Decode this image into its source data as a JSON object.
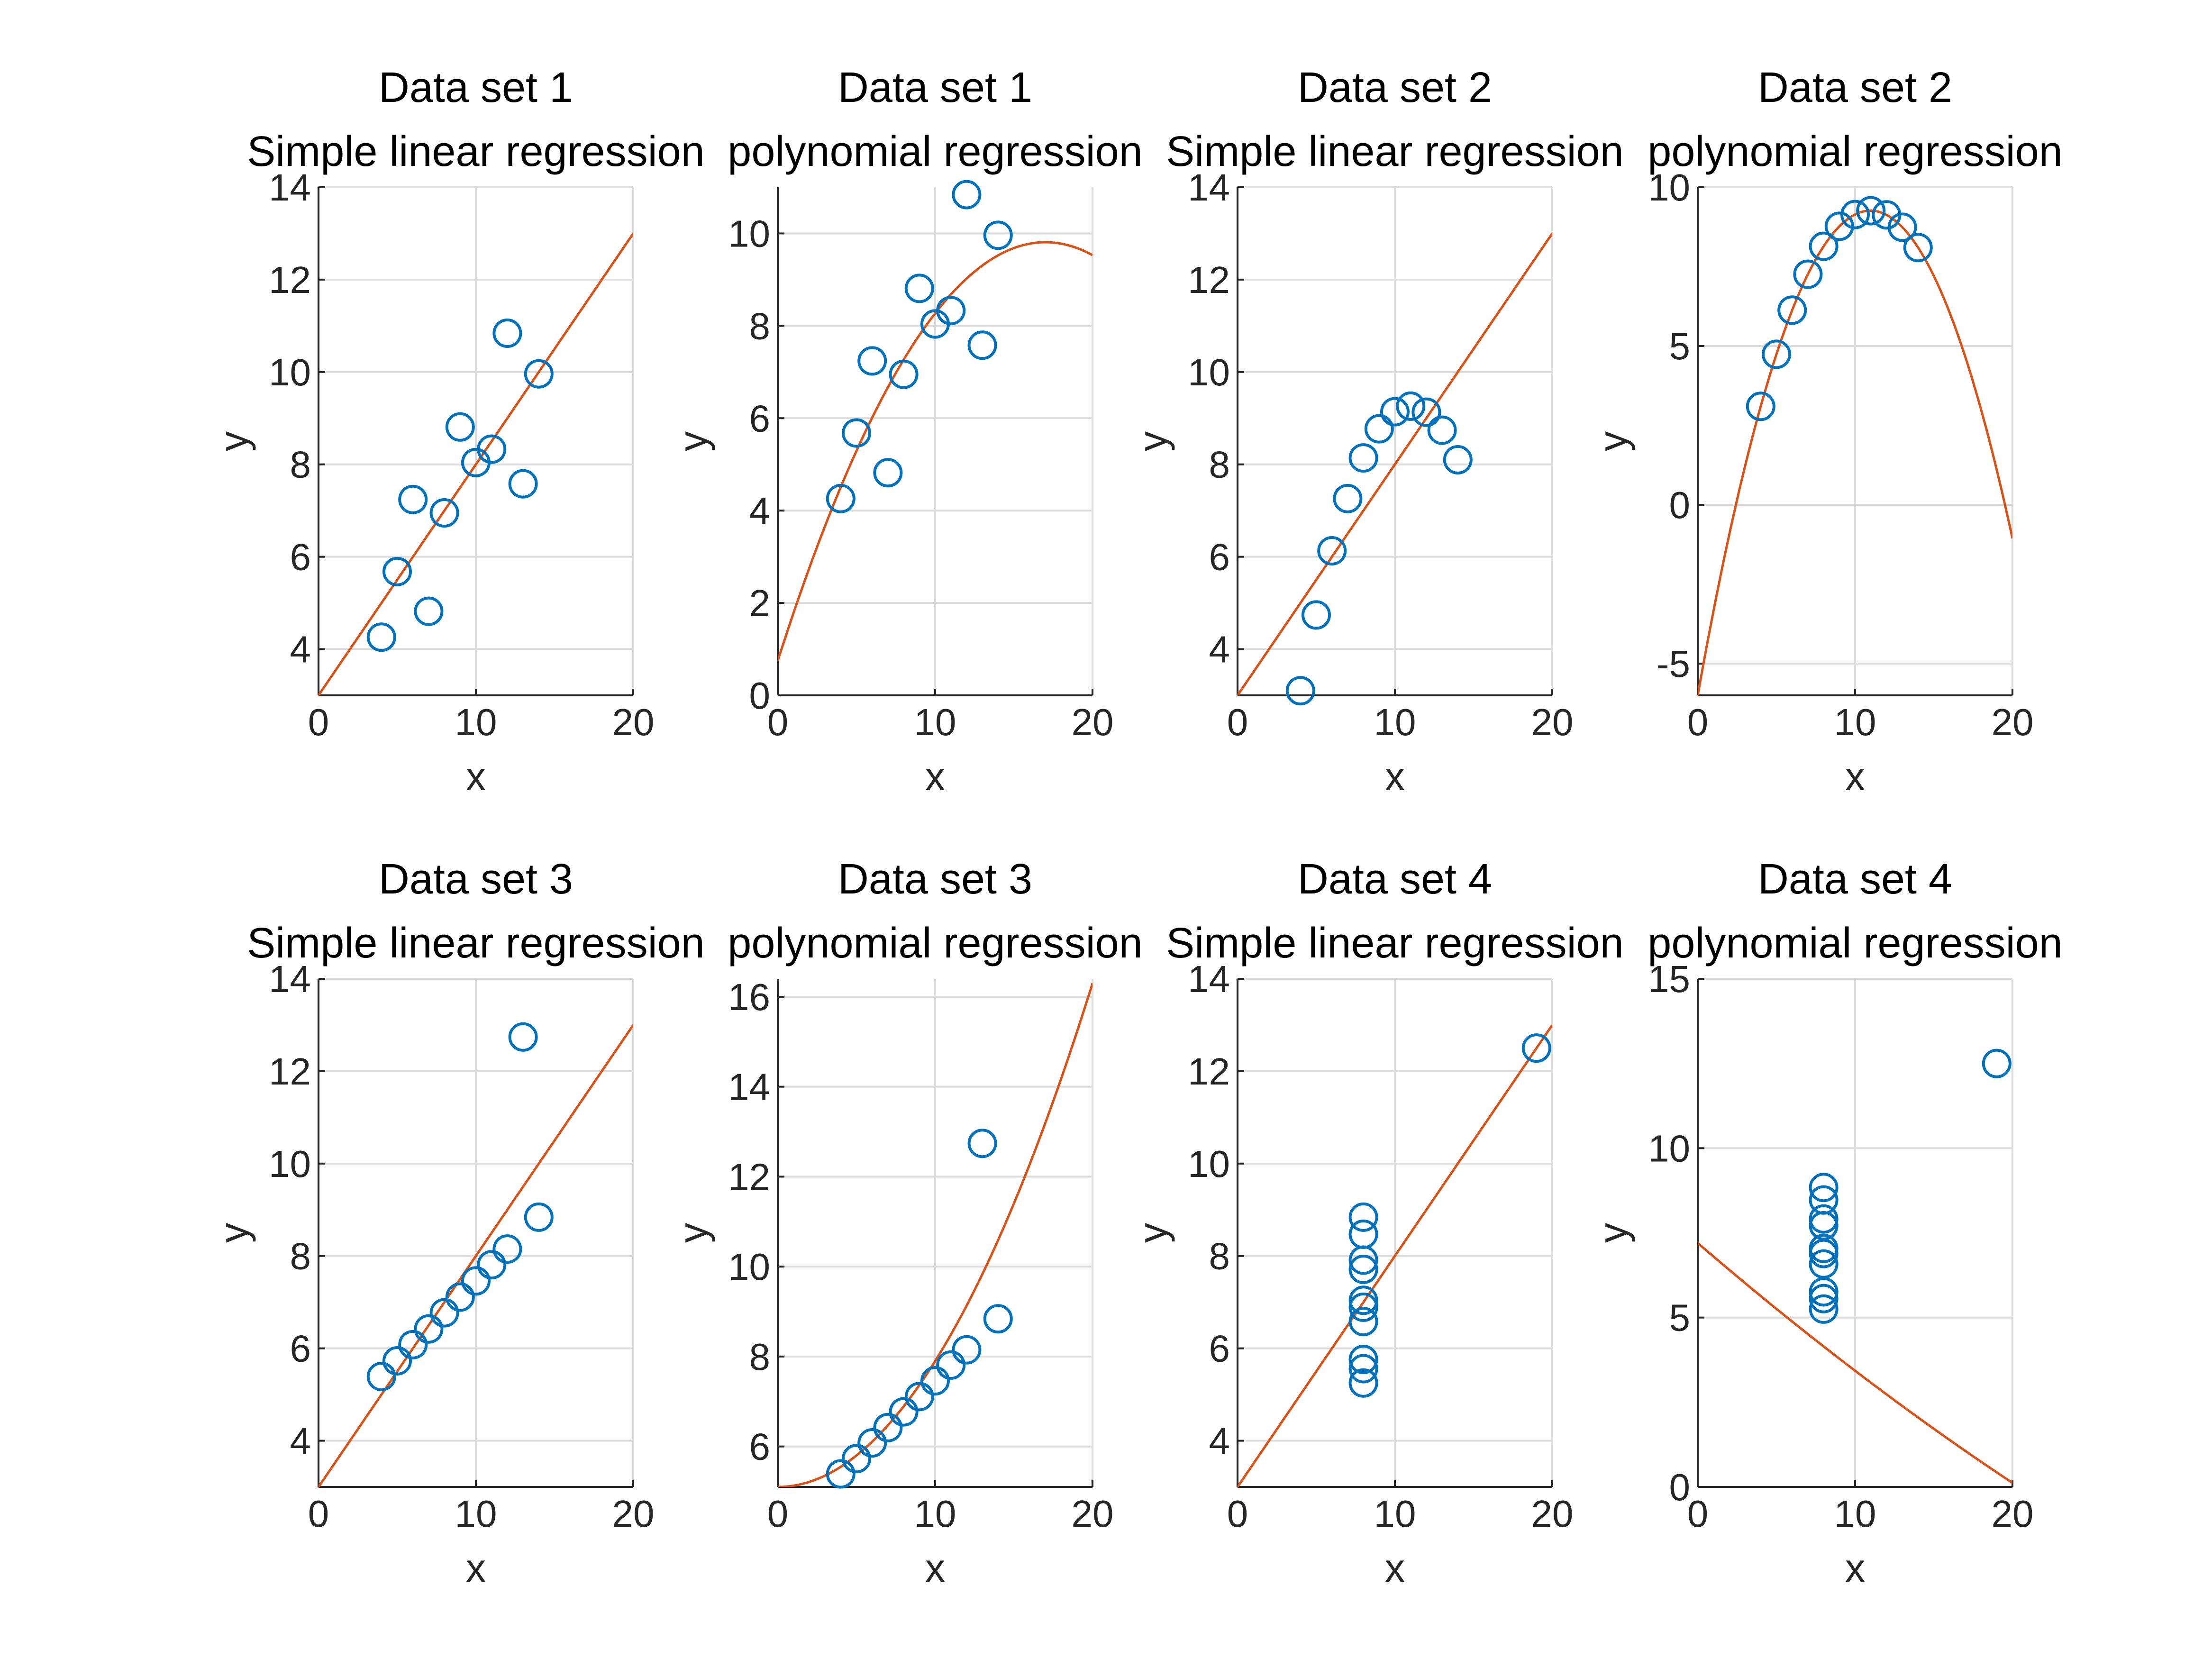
{
  "colors": {
    "points": "#0072BD",
    "fit": "#D95319"
  },
  "chart_data": [
    {
      "type": "scatter",
      "title": "Data set 1",
      "subtitle": "Simple linear regression",
      "xlabel": "x",
      "ylabel": "y",
      "xlim": [
        0,
        20
      ],
      "ylim": [
        3,
        14
      ],
      "xticks": [
        "0",
        "10",
        "20"
      ],
      "yticks": [
        "4",
        "6",
        "8",
        "10",
        "12",
        "14"
      ],
      "grid": true,
      "points": {
        "x": [
          10,
          8,
          13,
          9,
          11,
          14,
          6,
          4,
          12,
          7,
          5
        ],
        "y": [
          8.04,
          6.95,
          7.58,
          8.81,
          8.33,
          9.96,
          7.24,
          4.26,
          10.84,
          4.82,
          5.68
        ]
      },
      "fit": {
        "model": "polynomial",
        "coefficients": [
          3.0,
          0.5
        ]
      }
    },
    {
      "type": "scatter",
      "title": "Data set 1",
      "subtitle": "polynomial regression",
      "xlabel": "x",
      "ylabel": "y",
      "xlim": [
        0,
        20
      ],
      "ylim": [
        0,
        11
      ],
      "xticks": [
        "0",
        "10",
        "20"
      ],
      "yticks": [
        "0",
        "2",
        "4",
        "6",
        "8",
        "10"
      ],
      "grid": true,
      "points": {
        "x": [
          10,
          8,
          13,
          9,
          11,
          14,
          6,
          4,
          12,
          7,
          5
        ],
        "y": [
          8.04,
          6.95,
          7.58,
          8.81,
          8.33,
          9.96,
          7.24,
          4.26,
          10.84,
          4.82,
          5.68
        ]
      },
      "fit": {
        "model": "polynomial",
        "coefficients": [
          0.75,
          1.065,
          -0.0313
        ]
      }
    },
    {
      "type": "scatter",
      "title": "Data set 2",
      "subtitle": "Simple linear regression",
      "xlabel": "x",
      "ylabel": "y",
      "xlim": [
        0,
        20
      ],
      "ylim": [
        3,
        14
      ],
      "xticks": [
        "0",
        "10",
        "20"
      ],
      "yticks": [
        "4",
        "6",
        "8",
        "10",
        "12",
        "14"
      ],
      "grid": true,
      "points": {
        "x": [
          10,
          8,
          13,
          9,
          11,
          14,
          6,
          4,
          12,
          7,
          5
        ],
        "y": [
          9.14,
          8.14,
          8.74,
          8.77,
          9.26,
          8.1,
          6.13,
          3.1,
          9.13,
          7.26,
          4.74
        ]
      },
      "fit": {
        "model": "polynomial",
        "coefficients": [
          3.0,
          0.5
        ]
      }
    },
    {
      "type": "scatter",
      "title": "Data set 2",
      "subtitle": "polynomial regression",
      "xlabel": "x",
      "ylabel": "y",
      "xlim": [
        0,
        20
      ],
      "ylim": [
        -6,
        10
      ],
      "xticks": [
        "0",
        "10",
        "20"
      ],
      "yticks": [
        "-5",
        "0",
        "5",
        "10"
      ],
      "grid": true,
      "points": {
        "x": [
          10,
          8,
          13,
          9,
          11,
          14,
          6,
          4,
          12,
          7,
          5
        ],
        "y": [
          9.14,
          8.14,
          8.74,
          8.77,
          9.26,
          8.1,
          6.13,
          3.1,
          9.13,
          7.26,
          4.74
        ]
      },
      "fit": {
        "model": "polynomial",
        "coefficients": [
          -5.9957,
          2.7808,
          -0.1267
        ]
      }
    },
    {
      "type": "scatter",
      "title": "Data set 3",
      "subtitle": "Simple linear regression",
      "xlabel": "x",
      "ylabel": "y",
      "xlim": [
        0,
        20
      ],
      "ylim": [
        3,
        14
      ],
      "xticks": [
        "0",
        "10",
        "20"
      ],
      "yticks": [
        "4",
        "6",
        "8",
        "10",
        "12",
        "14"
      ],
      "grid": true,
      "points": {
        "x": [
          10,
          8,
          13,
          9,
          11,
          14,
          6,
          4,
          12,
          7,
          5
        ],
        "y": [
          7.46,
          6.77,
          12.74,
          7.11,
          7.81,
          8.84,
          6.08,
          5.39,
          8.15,
          6.42,
          5.73
        ]
      },
      "fit": {
        "model": "polynomial",
        "coefficients": [
          3.0,
          0.5
        ]
      }
    },
    {
      "type": "scatter",
      "title": "Data set 3",
      "subtitle": "polynomial regression",
      "xlabel": "x",
      "ylabel": "y",
      "xlim": [
        0,
        20
      ],
      "ylim": [
        5.1,
        16.4
      ],
      "xticks": [
        "0",
        "10",
        "20"
      ],
      "yticks": [
        "6",
        "8",
        "10",
        "12",
        "14",
        "16"
      ],
      "grid": true,
      "points": {
        "x": [
          10,
          8,
          13,
          9,
          11,
          14,
          6,
          4,
          12,
          7,
          5
        ],
        "y": [
          7.46,
          6.77,
          12.74,
          7.11,
          7.81,
          8.84,
          6.08,
          5.39,
          8.15,
          6.42,
          5.73
        ]
      },
      "fit": {
        "model": "polynomial",
        "coefficients": [
          5.1,
          0.0,
          0.028
        ]
      }
    },
    {
      "type": "scatter",
      "title": "Data set 4",
      "subtitle": "Simple linear regression",
      "xlabel": "x",
      "ylabel": "y",
      "xlim": [
        0,
        20
      ],
      "ylim": [
        3,
        14
      ],
      "xticks": [
        "0",
        "10",
        "20"
      ],
      "yticks": [
        "4",
        "6",
        "8",
        "10",
        "12",
        "14"
      ],
      "grid": true,
      "points": {
        "x": [
          8,
          8,
          8,
          8,
          8,
          8,
          8,
          19,
          8,
          8,
          8
        ],
        "y": [
          6.58,
          5.76,
          7.71,
          8.84,
          8.47,
          7.04,
          5.25,
          12.5,
          5.56,
          7.91,
          6.89
        ]
      },
      "fit": {
        "model": "polynomial",
        "coefficients": [
          3.0,
          0.5
        ]
      }
    },
    {
      "type": "scatter",
      "title": "Data set 4",
      "subtitle": "polynomial regression",
      "xlabel": "x",
      "ylabel": "y",
      "xlim": [
        0,
        20
      ],
      "ylim": [
        0,
        15
      ],
      "xticks": [
        "0",
        "10",
        "20"
      ],
      "yticks": [
        "0",
        "5",
        "10",
        "15"
      ],
      "grid": true,
      "points": {
        "x": [
          8,
          8,
          8,
          8,
          8,
          8,
          8,
          19,
          8,
          8,
          8
        ],
        "y": [
          6.58,
          5.76,
          7.71,
          8.84,
          8.47,
          7.04,
          5.25,
          12.5,
          5.56,
          7.91,
          6.89
        ]
      },
      "fit": {
        "model": "polynomial",
        "coefficients": [
          7.2,
          -0.4,
          0.0023
        ]
      }
    }
  ]
}
